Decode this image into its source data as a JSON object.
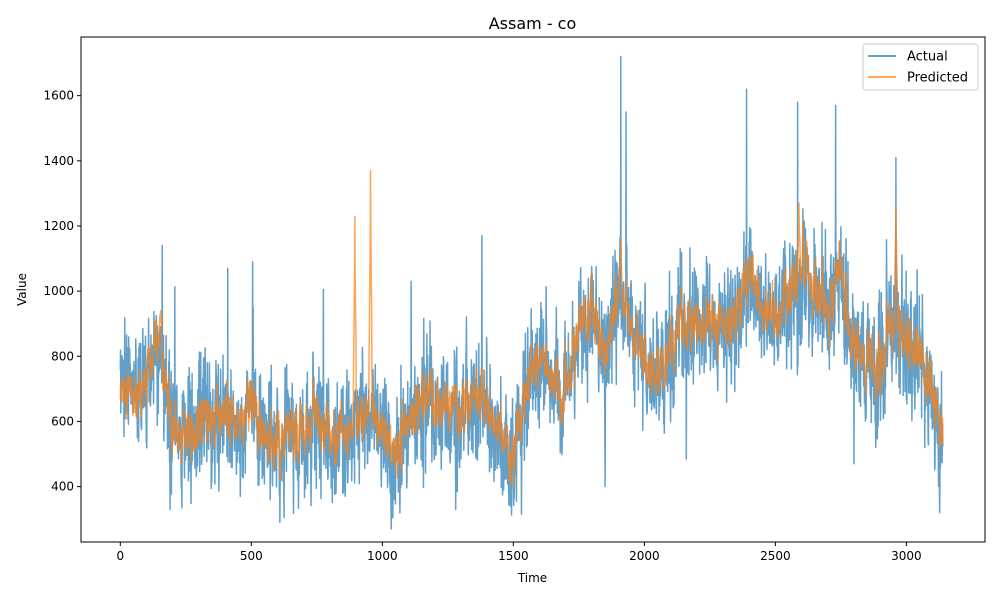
{
  "chart_data": {
    "type": "line",
    "title": "Assam - co",
    "xlabel": "Time",
    "ylabel": "Value",
    "xlim": [
      -150,
      3300
    ],
    "ylim": [
      230,
      1780
    ],
    "xticks": [
      0,
      500,
      1000,
      1500,
      2000,
      2500,
      3000
    ],
    "yticks": [
      400,
      600,
      800,
      1000,
      1200,
      1400,
      1600
    ],
    "grid": false,
    "legend_position": "top-right",
    "n_points": 3140,
    "series": [
      {
        "name": "Actual",
        "color": "#1f77b4",
        "opacity": 0.7,
        "profile_x": [
          0,
          50,
          100,
          150,
          200,
          250,
          300,
          350,
          400,
          450,
          500,
          550,
          600,
          650,
          700,
          750,
          800,
          850,
          900,
          950,
          1000,
          1050,
          1100,
          1150,
          1200,
          1250,
          1300,
          1350,
          1400,
          1450,
          1500,
          1550,
          1600,
          1650,
          1700,
          1750,
          1800,
          1850,
          1900,
          1950,
          2000,
          2050,
          2100,
          2150,
          2200,
          2250,
          2300,
          2350,
          2400,
          2450,
          2500,
          2550,
          2600,
          2650,
          2700,
          2750,
          2800,
          2850,
          2900,
          2950,
          3000,
          3050,
          3100,
          3139
        ],
        "profile_y": [
          700,
          680,
          720,
          800,
          600,
          560,
          580,
          620,
          600,
          590,
          640,
          560,
          520,
          540,
          580,
          600,
          520,
          540,
          560,
          620,
          580,
          480,
          560,
          680,
          620,
          640,
          600,
          660,
          640,
          560,
          500,
          700,
          800,
          720,
          680,
          900,
          920,
          800,
          980,
          880,
          760,
          720,
          820,
          900,
          880,
          920,
          880,
          920,
          1020,
          960,
          900,
          980,
          1050,
          1000,
          940,
          1080,
          820,
          760,
          760,
          900,
          840,
          780,
          700,
          520
        ],
        "noise_sd": 110,
        "peaks": [
          {
            "x": 160,
            "y": 1140
          },
          {
            "x": 410,
            "y": 1070
          },
          {
            "x": 505,
            "y": 1090
          },
          {
            "x": 775,
            "y": 1005
          },
          {
            "x": 1110,
            "y": 1030
          },
          {
            "x": 1380,
            "y": 1170
          },
          {
            "x": 1910,
            "y": 1720
          },
          {
            "x": 1930,
            "y": 1550
          },
          {
            "x": 2390,
            "y": 1620
          },
          {
            "x": 2585,
            "y": 1580
          },
          {
            "x": 2730,
            "y": 1570
          },
          {
            "x": 2960,
            "y": 1410
          }
        ],
        "troughs": [
          {
            "x": 190,
            "y": 330
          },
          {
            "x": 625,
            "y": 305
          },
          {
            "x": 1040,
            "y": 305
          },
          {
            "x": 1280,
            "y": 330
          },
          {
            "x": 1500,
            "y": 400
          },
          {
            "x": 1850,
            "y": 400
          },
          {
            "x": 2160,
            "y": 485
          },
          {
            "x": 2800,
            "y": 470
          },
          {
            "x": 3130,
            "y": 460
          }
        ]
      },
      {
        "name": "Predicted",
        "color": "#ff7f0e",
        "opacity": 0.7,
        "profile_x": [
          0,
          50,
          100,
          150,
          200,
          250,
          300,
          350,
          400,
          450,
          500,
          550,
          600,
          650,
          700,
          750,
          800,
          850,
          900,
          950,
          1000,
          1050,
          1100,
          1150,
          1200,
          1250,
          1300,
          1350,
          1400,
          1450,
          1500,
          1550,
          1600,
          1650,
          1700,
          1750,
          1800,
          1850,
          1900,
          1950,
          2000,
          2050,
          2100,
          2150,
          2200,
          2250,
          2300,
          2350,
          2400,
          2450,
          2500,
          2550,
          2600,
          2650,
          2700,
          2750,
          2800,
          2850,
          2900,
          2950,
          3000,
          3050,
          3100,
          3139
        ],
        "profile_y": [
          680,
          660,
          720,
          850,
          560,
          560,
          590,
          620,
          600,
          600,
          650,
          560,
          520,
          560,
          600,
          620,
          540,
          560,
          580,
          640,
          580,
          500,
          580,
          700,
          640,
          650,
          620,
          680,
          650,
          580,
          500,
          720,
          810,
          730,
          690,
          910,
          930,
          800,
          1000,
          880,
          760,
          740,
          830,
          900,
          880,
          930,
          890,
          930,
          1080,
          960,
          910,
          990,
          1100,
          1000,
          950,
          1100,
          830,
          780,
          760,
          920,
          850,
          800,
          700,
          580
        ],
        "noise_sd": 55,
        "peaks": [
          {
            "x": 155,
            "y": 940
          },
          {
            "x": 895,
            "y": 1230
          },
          {
            "x": 955,
            "y": 1370
          },
          {
            "x": 1910,
            "y": 1160
          },
          {
            "x": 2590,
            "y": 1270
          },
          {
            "x": 2960,
            "y": 1260
          }
        ],
        "troughs": []
      }
    ]
  }
}
